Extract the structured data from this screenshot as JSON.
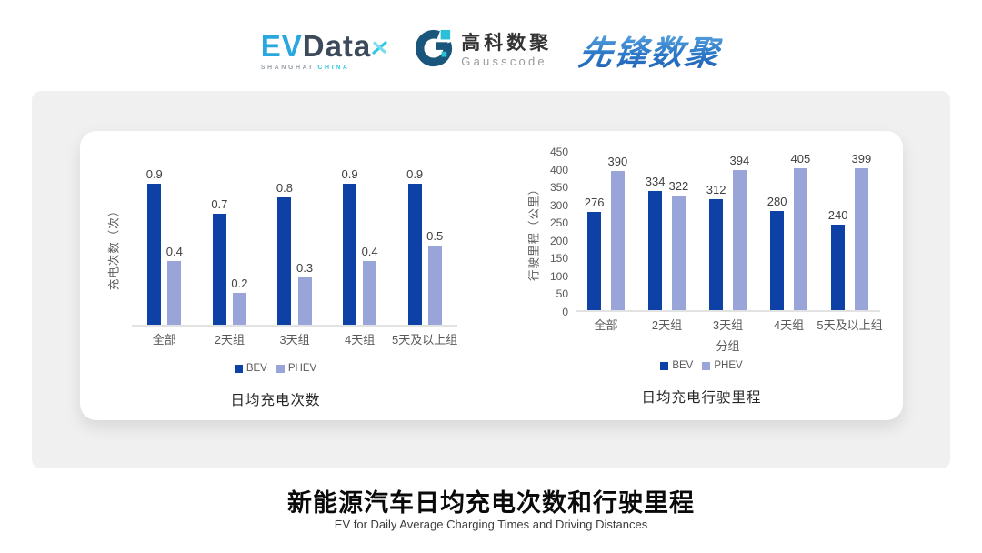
{
  "logos": {
    "evdata": {
      "ev": "EV",
      "data": "Data",
      "sub_left": "SHANGHAI",
      "sub_right": "CHINA"
    },
    "gausscode": {
      "cn": "高科数聚",
      "en": "Gausscode"
    },
    "xianfeng": {
      "text": "先锋数聚"
    }
  },
  "colors": {
    "bev": "#0d41a5",
    "phev": "#99a5d9",
    "evdata_blue": "#29a7df",
    "evdata_dark": "#3d4a5b",
    "gauss_dark": "#1a567c",
    "gauss_cyan": "#2bc0d8",
    "panel_bg": "#f0f0f0",
    "card_bg": "#ffffff"
  },
  "chart_data": [
    {
      "type": "bar",
      "title": "日均充电次数",
      "ylabel": "充电次数（次）",
      "xlabel": "",
      "categories": [
        "全部",
        "2天组",
        "3天组",
        "4天组",
        "5天及以上组"
      ],
      "series": [
        {
          "name": "BEV",
          "values": [
            0.9,
            0.7,
            0.8,
            0.9,
            0.9
          ]
        },
        {
          "name": "PHEV",
          "values": [
            0.4,
            0.2,
            0.3,
            0.4,
            0.5
          ]
        }
      ],
      "ylim": [
        0,
        1.0
      ],
      "y_ticks_visible": false,
      "grid": false,
      "legend_position": "bottom",
      "data_labels": true
    },
    {
      "type": "bar",
      "title": "日均充电行驶里程",
      "ylabel": "行驶里程（公里）",
      "xlabel": "分组",
      "categories": [
        "全部",
        "2天组",
        "3天组",
        "4天组",
        "5天及以上组"
      ],
      "series": [
        {
          "name": "BEV",
          "values": [
            276,
            334,
            312,
            280,
            240
          ]
        },
        {
          "name": "PHEV",
          "values": [
            390,
            322,
            394,
            405,
            399
          ]
        }
      ],
      "ylim": [
        0,
        450
      ],
      "y_tick_step": 50,
      "y_ticks_visible": true,
      "grid": false,
      "legend_position": "bottom",
      "data_labels": true
    }
  ],
  "footer": {
    "title": "新能源汽车日均充电次数和行驶里程",
    "subtitle": "EV for Daily Average Charging Times and Driving Distances"
  }
}
